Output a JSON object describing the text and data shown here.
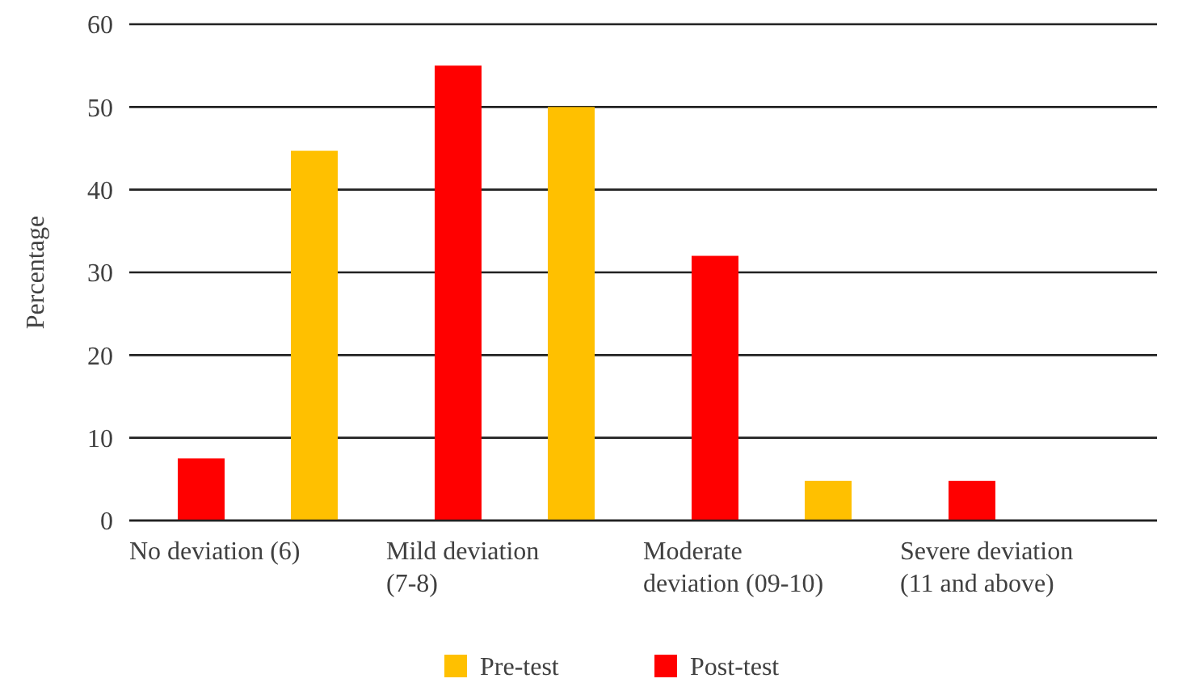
{
  "chart_data": {
    "type": "bar",
    "ylabel": "Percentage",
    "categories": [
      "No deviation (6)",
      "Mild deviation (7-8)",
      "Moderate deviation (09-10)",
      "Severe deviation (11 and above)"
    ],
    "series": [
      {
        "name": "Post-test",
        "color": "#ff0000",
        "values": [
          7.5,
          55,
          32,
          4.8
        ]
      },
      {
        "name": "Pre-test",
        "color": "#ffc000",
        "values": [
          44.7,
          50,
          4.8,
          0
        ]
      }
    ],
    "ylim": [
      0,
      60
    ],
    "yticks": [
      0,
      10,
      20,
      30,
      40,
      50,
      60
    ],
    "grid": "y",
    "legend": "bottom"
  }
}
